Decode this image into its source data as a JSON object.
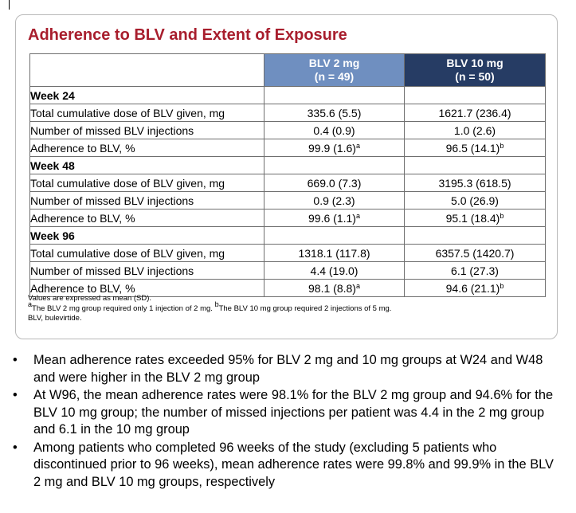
{
  "panel": {
    "title": "Adherence to BLV and Extent of Exposure",
    "columns": [
      {
        "line1": "BLV 2 mg",
        "line2": "(n = 49)",
        "color": "#6f8fc0"
      },
      {
        "line1": "BLV 10 mg",
        "line2": "(n = 50)",
        "color": "#263c64"
      }
    ],
    "sections": [
      {
        "label": "Week 24",
        "rows": [
          {
            "label": "Total cumulative dose of BLV given, mg",
            "v1": "335.6 (5.5)",
            "v1sup": "",
            "v2": "1621.7 (236.4)",
            "v2sup": ""
          },
          {
            "label": "Number of missed BLV injections",
            "v1": "0.4 (0.9)",
            "v1sup": "",
            "v2": "1.0 (2.6)",
            "v2sup": ""
          },
          {
            "label": "Adherence to BLV, %",
            "v1": "99.9 (1.6)",
            "v1sup": "a",
            "v2": "96.5 (14.1)",
            "v2sup": "b"
          }
        ]
      },
      {
        "label": "Week 48",
        "rows": [
          {
            "label": "Total cumulative dose of BLV given, mg",
            "v1": "669.0 (7.3)",
            "v1sup": "",
            "v2": "3195.3 (618.5)",
            "v2sup": ""
          },
          {
            "label": "Number of missed BLV injections",
            "v1": "0.9 (2.3)",
            "v1sup": "",
            "v2": "5.0 (26.9)",
            "v2sup": ""
          },
          {
            "label": "Adherence to BLV, %",
            "v1": "99.6 (1.1)",
            "v1sup": "a",
            "v2": "95.1 (18.4)",
            "v2sup": "b"
          }
        ]
      },
      {
        "label": "Week 96",
        "rows": [
          {
            "label": "Total cumulative dose of BLV given, mg",
            "v1": "1318.1 (117.8)",
            "v1sup": "",
            "v2": "6357.5 (1420.7)",
            "v2sup": ""
          },
          {
            "label": "Number of missed BLV injections",
            "v1": "4.4 (19.0)",
            "v1sup": "",
            "v2": "6.1 (27.3)",
            "v2sup": ""
          },
          {
            "label": "Adherence to BLV, %",
            "v1": "98.1 (8.8)",
            "v1sup": "a",
            "v2": "94.6 (21.1)",
            "v2sup": "b"
          }
        ]
      }
    ],
    "notes": {
      "line1": "Values are expressed as mean (SD).",
      "fn_a_mark": "a",
      "fn_a_text": "The BLV 2 mg group required only 1 injection of 2 mg. ",
      "fn_b_mark": "b",
      "fn_b_text": "The BLV 10 mg group required 2 injections of 5 mg.",
      "line3": "BLV, bulevirtide."
    }
  },
  "bullets": [
    "Mean adherence rates exceeded 95% for BLV 2 mg and 10 mg groups at W24 and W48 and were higher in the BLV 2 mg group",
    "At W96, the mean adherence rates were 98.1% for the BLV 2 mg group and 94.6% for the BLV 10 mg group; the number of missed injections per patient was 4.4 in the 2 mg group and 6.1 in the 10 mg group",
    "Among patients who completed 96 weeks of the study (excluding 5 patients who discontinued prior to 96 weeks), mean adherence rates were 99.8% and 99.9% in the BLV 2 mg and BLV 10 mg groups, respectively"
  ],
  "bullet_glyph": "•"
}
